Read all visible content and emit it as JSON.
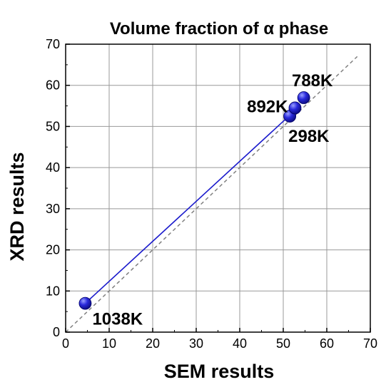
{
  "chart_data": {
    "type": "scatter",
    "title": "Volume fraction of α phase",
    "xlabel": "SEM results",
    "ylabel": "XRD results",
    "xlim": [
      0,
      70
    ],
    "ylim": [
      0,
      70
    ],
    "xticks": [
      0,
      10,
      20,
      30,
      40,
      50,
      60,
      70
    ],
    "yticks": [
      0,
      10,
      20,
      30,
      40,
      50,
      60,
      70
    ],
    "grid": true,
    "point_color": "#2a2adc",
    "fit_line_color": "#1a1acc",
    "reference_line_color": "#808080",
    "points": [
      {
        "label": "1038K",
        "x": 4.5,
        "y": 7.0
      },
      {
        "label": "298K",
        "x": 51.5,
        "y": 52.5
      },
      {
        "label": "892K",
        "x": 52.7,
        "y": 54.5
      },
      {
        "label": "788K",
        "x": 54.7,
        "y": 57.0
      }
    ],
    "fit_line": {
      "x": [
        4.5,
        52.0
      ],
      "y": [
        7.0,
        53.2
      ]
    },
    "reference_line": {
      "x": [
        0,
        67
      ],
      "y": [
        0,
        67
      ]
    }
  }
}
